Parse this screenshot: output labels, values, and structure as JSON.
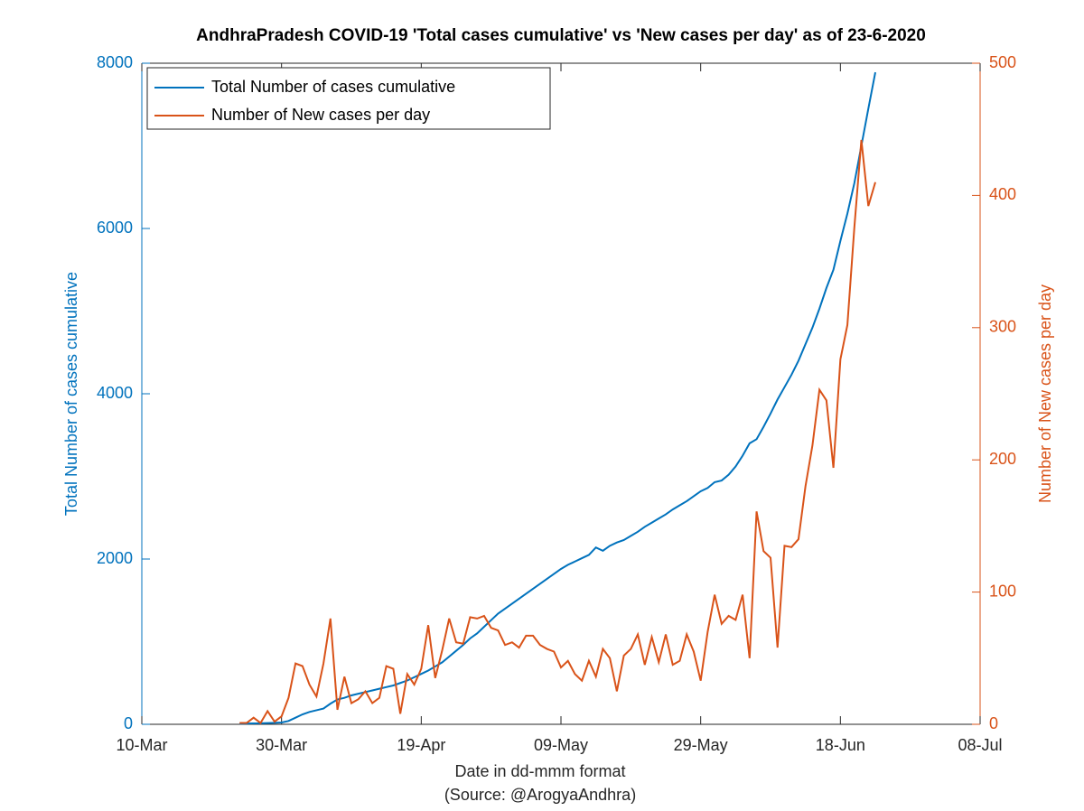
{
  "chart_data": {
    "type": "line",
    "title": "AndhraPradesh COVID-19 'Total cases cumulative' vs 'New cases per day' as of 23-6-2020",
    "xlabel": "Date in dd-mmm format",
    "source": "(Source: @ArogyaAndhra)",
    "ylabel": "Total Number of cases cumulative",
    "y2label": "Number of New cases per day",
    "x": [
      "24-Mar",
      "25-Mar",
      "26-Mar",
      "27-Mar",
      "28-Mar",
      "29-Mar",
      "30-Mar",
      "31-Mar",
      "01-Apr",
      "02-Apr",
      "03-Apr",
      "04-Apr",
      "05-Apr",
      "06-Apr",
      "07-Apr",
      "08-Apr",
      "09-Apr",
      "10-Apr",
      "11-Apr",
      "12-Apr",
      "13-Apr",
      "14-Apr",
      "15-Apr",
      "16-Apr",
      "17-Apr",
      "18-Apr",
      "19-Apr",
      "20-Apr",
      "21-Apr",
      "22-Apr",
      "23-Apr",
      "24-Apr",
      "25-Apr",
      "26-Apr",
      "27-Apr",
      "28-Apr",
      "29-Apr",
      "30-Apr",
      "01-May",
      "02-May",
      "03-May",
      "04-May",
      "05-May",
      "06-May",
      "07-May",
      "08-May",
      "09-May",
      "10-May",
      "11-May",
      "12-May",
      "13-May",
      "14-May",
      "15-May",
      "16-May",
      "17-May",
      "18-May",
      "19-May",
      "20-May",
      "21-May",
      "22-May",
      "23-May",
      "24-May",
      "25-May",
      "26-May",
      "27-May",
      "28-May",
      "29-May",
      "30-May",
      "31-May",
      "01-Jun",
      "02-Jun",
      "03-Jun",
      "04-Jun",
      "05-Jun",
      "06-Jun",
      "07-Jun",
      "08-Jun",
      "09-Jun",
      "10-Jun",
      "11-Jun",
      "12-Jun",
      "13-Jun",
      "14-Jun",
      "15-Jun",
      "16-Jun",
      "17-Jun",
      "18-Jun",
      "19-Jun",
      "20-Jun",
      "21-Jun",
      "22-Jun",
      "23-Jun"
    ],
    "series": [
      {
        "name": "Total Number of cases cumulative",
        "color": "#0072bd",
        "axis": "y",
        "values": [
          8,
          9,
          11,
          12,
          15,
          18,
          22,
          40,
          80,
          120,
          150,
          170,
          190,
          250,
          300,
          320,
          350,
          370,
          390,
          410,
          430,
          450,
          470,
          500,
          530,
          570,
          610,
          650,
          700,
          750,
          820,
          890,
          960,
          1040,
          1100,
          1180,
          1260,
          1340,
          1400,
          1460,
          1520,
          1580,
          1640,
          1700,
          1760,
          1820,
          1880,
          1930,
          1970,
          2010,
          2050,
          2140,
          2100,
          2160,
          2200,
          2230,
          2280,
          2330,
          2390,
          2440,
          2490,
          2540,
          2600,
          2650,
          2700,
          2760,
          2820,
          2860,
          2930,
          2950,
          3020,
          3120,
          3250,
          3400,
          3450,
          3600,
          3760,
          3930,
          4080,
          4230,
          4400,
          4600,
          4800,
          5030,
          5280,
          5500,
          5850,
          6180,
          6550,
          7000,
          7450,
          7890
        ]
      },
      {
        "name": "Number of New cases per day",
        "color": "#d95319",
        "axis": "y2",
        "values": [
          1,
          1,
          5,
          1,
          10,
          2,
          6,
          20,
          46,
          44,
          30,
          21,
          46,
          80,
          11,
          36,
          16,
          19,
          25,
          16,
          20,
          44,
          42,
          8,
          38,
          30,
          42,
          75,
          35,
          56,
          80,
          62,
          61,
          81,
          80,
          82,
          73,
          71,
          60,
          62,
          58,
          67,
          67,
          60,
          57,
          55,
          43,
          48,
          38,
          33,
          48,
          36,
          57,
          50,
          25,
          52,
          57,
          68,
          45,
          66,
          47,
          68,
          45,
          48,
          68,
          55,
          33,
          70,
          98,
          76,
          82,
          79,
          98,
          50,
          161,
          131,
          126,
          58,
          135,
          134,
          140,
          180,
          211,
          253,
          245,
          194,
          276,
          302,
          376,
          442,
          392,
          410
        ]
      }
    ],
    "xlim": [
      "10-Mar",
      "08-Jul"
    ],
    "xticks": [
      "10-Mar",
      "30-Mar",
      "19-Apr",
      "09-May",
      "29-May",
      "18-Jun",
      "08-Jul"
    ],
    "ylim": [
      0,
      8000
    ],
    "yticks": [
      0,
      2000,
      4000,
      6000,
      8000
    ],
    "y2lim": [
      0,
      500
    ],
    "y2ticks": [
      0,
      100,
      200,
      300,
      400,
      500
    ],
    "grid": false,
    "legend": "upper left"
  }
}
